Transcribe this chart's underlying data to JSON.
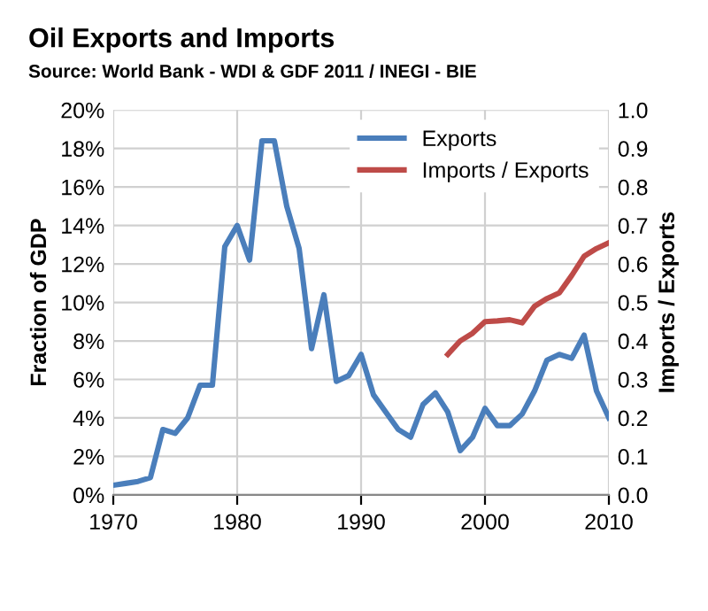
{
  "chart_data": {
    "type": "line",
    "title": "Oil Exports and Imports",
    "subtitle": "Source: World Bank - WDI & GDF 2011 / INEGI - BIE",
    "ylabel": "Fraction of GDP",
    "y2label": "Imports / Exports",
    "x": [
      1970,
      1971,
      1972,
      1973,
      1974,
      1975,
      1976,
      1977,
      1978,
      1979,
      1980,
      1981,
      1982,
      1983,
      1984,
      1985,
      1986,
      1987,
      1988,
      1989,
      1990,
      1991,
      1992,
      1993,
      1994,
      1995,
      1996,
      1997,
      1998,
      1999,
      2000,
      2001,
      2002,
      2003,
      2004,
      2005,
      2006,
      2007,
      2008,
      2009,
      2010
    ],
    "series": [
      {
        "name": "Exports",
        "color": "#4a7ebb",
        "values": [
          0.005,
          0.006,
          0.007,
          0.009,
          0.034,
          0.032,
          0.04,
          0.057,
          0.057,
          0.129,
          0.14,
          0.122,
          0.184,
          0.184,
          0.15,
          0.128,
          0.076,
          0.104,
          0.059,
          0.062,
          0.073,
          0.052,
          0.043,
          0.034,
          0.03,
          0.047,
          0.053,
          0.043,
          0.023,
          0.03,
          0.045,
          0.036,
          0.036,
          0.042,
          0.054,
          0.07,
          0.073,
          0.071,
          0.083,
          0.054,
          0.04
        ]
      },
      {
        "name": "Imports / Exports",
        "color": "#be4b48",
        "axis": "y2",
        "x": [
          1997,
          1998,
          1999,
          2000,
          2001,
          2002,
          2003,
          2004,
          2005,
          2006,
          2007,
          2008,
          2009,
          2010
        ],
        "values": [
          0.365,
          0.4,
          0.42,
          0.45,
          0.452,
          0.455,
          0.447,
          0.49,
          0.51,
          0.525,
          0.57,
          0.62,
          0.64,
          0.655
        ]
      }
    ],
    "xlim": [
      1970,
      2010
    ],
    "xticks": [
      1970,
      1980,
      1990,
      2000,
      2010
    ],
    "ylim": [
      0,
      0.2
    ],
    "yticks": [
      {
        "value": 0,
        "label": "0%"
      },
      {
        "value": 0.02,
        "label": "2%"
      },
      {
        "value": 0.04,
        "label": "4%"
      },
      {
        "value": 0.06,
        "label": "6%"
      },
      {
        "value": 0.08,
        "label": "8%"
      },
      {
        "value": 0.1,
        "label": "10%"
      },
      {
        "value": 0.12,
        "label": "12%"
      },
      {
        "value": 0.14,
        "label": "14%"
      },
      {
        "value": 0.16,
        "label": "16%"
      },
      {
        "value": 0.18,
        "label": "18%"
      },
      {
        "value": 0.2,
        "label": "20%"
      }
    ],
    "y2lim": [
      0,
      1
    ],
    "y2ticks": [
      {
        "value": 0,
        "label": "0.0"
      },
      {
        "value": 0.1,
        "label": "0.1"
      },
      {
        "value": 0.2,
        "label": "0.2"
      },
      {
        "value": 0.3,
        "label": "0.3"
      },
      {
        "value": 0.4,
        "label": "0.4"
      },
      {
        "value": 0.5,
        "label": "0.5"
      },
      {
        "value": 0.6,
        "label": "0.6"
      },
      {
        "value": 0.7,
        "label": "0.7"
      },
      {
        "value": 0.8,
        "label": "0.8"
      },
      {
        "value": 0.9,
        "label": "0.9"
      },
      {
        "value": 1.0,
        "label": "1.0"
      }
    ],
    "grid": true,
    "legend": "top right",
    "marker": "none",
    "line_style": "solid"
  }
}
